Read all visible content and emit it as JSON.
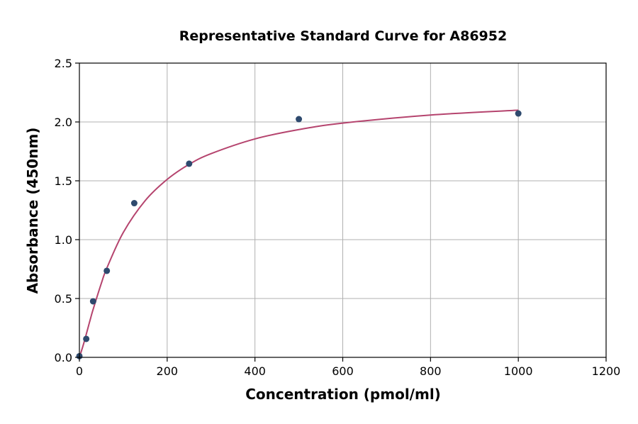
{
  "chart_data": {
    "type": "scatter",
    "title": "Representative Standard Curve for A86952",
    "xlabel": "Concentration (pmol/ml)",
    "ylabel": "Absorbance (450nm)",
    "xlim": [
      0,
      1200
    ],
    "ylim": [
      0,
      2.5
    ],
    "xticks": [
      0,
      200,
      400,
      600,
      800,
      1000,
      1200
    ],
    "yticks": [
      0.0,
      0.5,
      1.0,
      1.5,
      2.0,
      2.5
    ],
    "xtick_labels": [
      "0",
      "200",
      "400",
      "600",
      "800",
      "1000",
      "1200"
    ],
    "ytick_labels": [
      "0.0",
      "0.5",
      "1.0",
      "1.5",
      "2.0",
      "2.5"
    ],
    "grid": true,
    "points": {
      "x": [
        0,
        15.6,
        31.25,
        62.5,
        125,
        250,
        500,
        1000
      ],
      "y": [
        0.01,
        0.157,
        0.476,
        0.735,
        1.31,
        1.645,
        2.024,
        2.072
      ],
      "color": "#2e4a6e"
    },
    "fit_curve": {
      "x": [
        0,
        10,
        25,
        31.25,
        50,
        62.5,
        100,
        150,
        200,
        250,
        300,
        400,
        500,
        600,
        800,
        1000
      ],
      "y": [
        0,
        0.12,
        0.325,
        0.407,
        0.629,
        0.758,
        1.061,
        1.332,
        1.512,
        1.64,
        1.731,
        1.856,
        1.935,
        1.99,
        2.059,
        2.1
      ],
      "color": "#b5446e"
    }
  }
}
